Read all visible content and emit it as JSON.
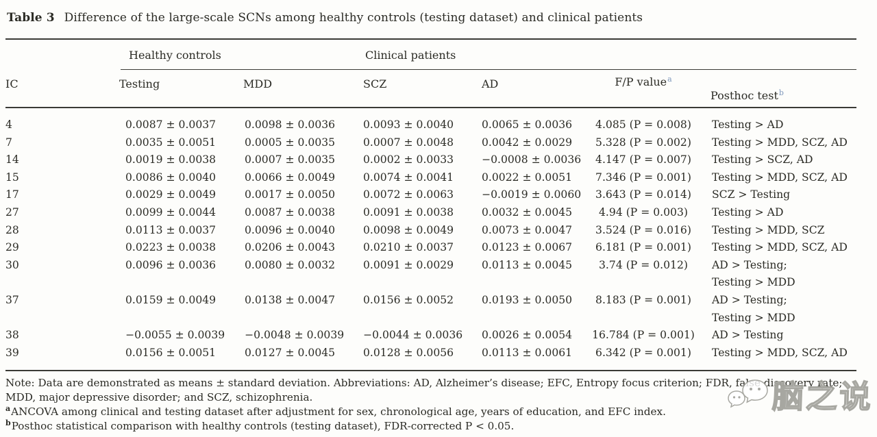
{
  "title": {
    "label": "Table 3",
    "text": "Difference of the large-scale SCNs among healthy controls (testing dataset) and clinical patients"
  },
  "table": {
    "group_headers": {
      "healthy": "Healthy controls",
      "clinical": "Clinical patients"
    },
    "columns": {
      "ic": "IC",
      "testing": "Testing",
      "mdd": "MDD",
      "scz": "SCZ",
      "ad": "AD",
      "fp": "F/P value",
      "fp_sup": "a",
      "posthoc": "Posthoc test",
      "posthoc_sup": "b"
    },
    "rows": [
      {
        "ic": "4",
        "testing": "0.0087 ± 0.0037",
        "mdd": "0.0098 ± 0.0036",
        "scz": "0.0093 ± 0.0040",
        "ad": "0.0065 ± 0.0036",
        "fp": "4.085 (P = 0.008)",
        "posthoc": [
          "Testing > AD"
        ]
      },
      {
        "ic": "7",
        "testing": "0.0035 ± 0.0051",
        "mdd": "0.0005 ± 0.0035",
        "scz": "0.0007 ± 0.0048",
        "ad": "0.0042 ± 0.0029",
        "fp": "5.328 (P = 0.002)",
        "posthoc": [
          "Testing > MDD, SCZ, AD"
        ]
      },
      {
        "ic": "14",
        "testing": "0.0019 ± 0.0038",
        "mdd": "0.0007 ± 0.0035",
        "scz": "0.0002 ± 0.0033",
        "ad": "−0.0008 ± 0.0036",
        "fp": "4.147 (P = 0.007)",
        "posthoc": [
          "Testing > SCZ, AD"
        ]
      },
      {
        "ic": "15",
        "testing": "0.0086 ± 0.0040",
        "mdd": "0.0066 ± 0.0049",
        "scz": "0.0074 ± 0.0041",
        "ad": "0.0022 ± 0.0051",
        "fp": "7.346 (P = 0.001)",
        "posthoc": [
          "Testing > MDD, SCZ, AD"
        ]
      },
      {
        "ic": "17",
        "testing": "0.0029 ± 0.0049",
        "mdd": "0.0017 ± 0.0050",
        "scz": "0.0072 ± 0.0063",
        "ad": "−0.0019 ± 0.0060",
        "fp": "3.643 (P = 0.014)",
        "posthoc": [
          "SCZ > Testing"
        ]
      },
      {
        "ic": "27",
        "testing": "0.0099 ± 0.0044",
        "mdd": "0.0087 ± 0.0038",
        "scz": "0.0091 ± 0.0038",
        "ad": "0.0032 ± 0.0045",
        "fp": "4.94 (P = 0.003)",
        "posthoc": [
          "Testing > AD"
        ]
      },
      {
        "ic": "28",
        "testing": "0.0113 ± 0.0037",
        "mdd": "0.0096 ± 0.0040",
        "scz": "0.0098 ± 0.0049",
        "ad": "0.0073 ± 0.0047",
        "fp": "3.524 (P = 0.016)",
        "posthoc": [
          "Testing > MDD, SCZ"
        ]
      },
      {
        "ic": "29",
        "testing": "0.0223 ± 0.0038",
        "mdd": "0.0206 ± 0.0043",
        "scz": "0.0210 ± 0.0037",
        "ad": "0.0123 ± 0.0067",
        "fp": "6.181 (P = 0.001)",
        "posthoc": [
          "Testing > MDD, SCZ, AD"
        ]
      },
      {
        "ic": "30",
        "testing": "0.0096 ± 0.0036",
        "mdd": "0.0080 ± 0.0032",
        "scz": "0.0091 ± 0.0029",
        "ad": "0.0113 ± 0.0045",
        "fp": "3.74 (P = 0.012)",
        "posthoc": [
          "AD > Testing;",
          "Testing > MDD"
        ]
      },
      {
        "ic": "37",
        "testing": "0.0159 ± 0.0049",
        "mdd": "0.0138 ± 0.0047",
        "scz": "0.0156 ± 0.0052",
        "ad": "0.0193 ± 0.0050",
        "fp": "8.183 (P = 0.001)",
        "posthoc": [
          "AD > Testing;",
          "Testing > MDD"
        ]
      },
      {
        "ic": "38",
        "testing": "−0.0055 ± 0.0039",
        "mdd": "−0.0048 ± 0.0039",
        "scz": "−0.0044 ± 0.0036",
        "ad": "0.0026 ± 0.0054",
        "fp": "16.784 (P = 0.001)",
        "posthoc": [
          "AD > Testing"
        ]
      },
      {
        "ic": "39",
        "testing": "0.0156 ± 0.0051",
        "mdd": "0.0127 ± 0.0045",
        "scz": "0.0128 ± 0.0056",
        "ad": "0.0113 ± 0.0061",
        "fp": "6.342 (P = 0.001)",
        "posthoc": [
          "Testing > MDD, SCZ, AD"
        ]
      }
    ]
  },
  "footnotes": {
    "note": "Note: Data are demonstrated as means ± standard deviation. Abbreviations: AD, Alzheimer’s disease; EFC, Entropy focus criterion; FDR, false discovery rate; MDD, major depressive disorder; and SCZ, schizophrenia.",
    "a_marker": "a",
    "a_text": "ANCOVA among clinical and testing dataset after adjustment for sex, chronological age, years of education, and EFC index.",
    "b_marker": "b",
    "b_text": "Posthoc statistical comparison with healthy controls (testing dataset), FDR-corrected P < 0.05."
  },
  "watermark": {
    "text": "脑之说",
    "icon": "wechat-bubbles-icon"
  },
  "colors": {
    "superscript_blue": "#7d97bb",
    "text": "#2b2b25",
    "rule": "#3a3a36",
    "background": "#fdfdfb"
  }
}
